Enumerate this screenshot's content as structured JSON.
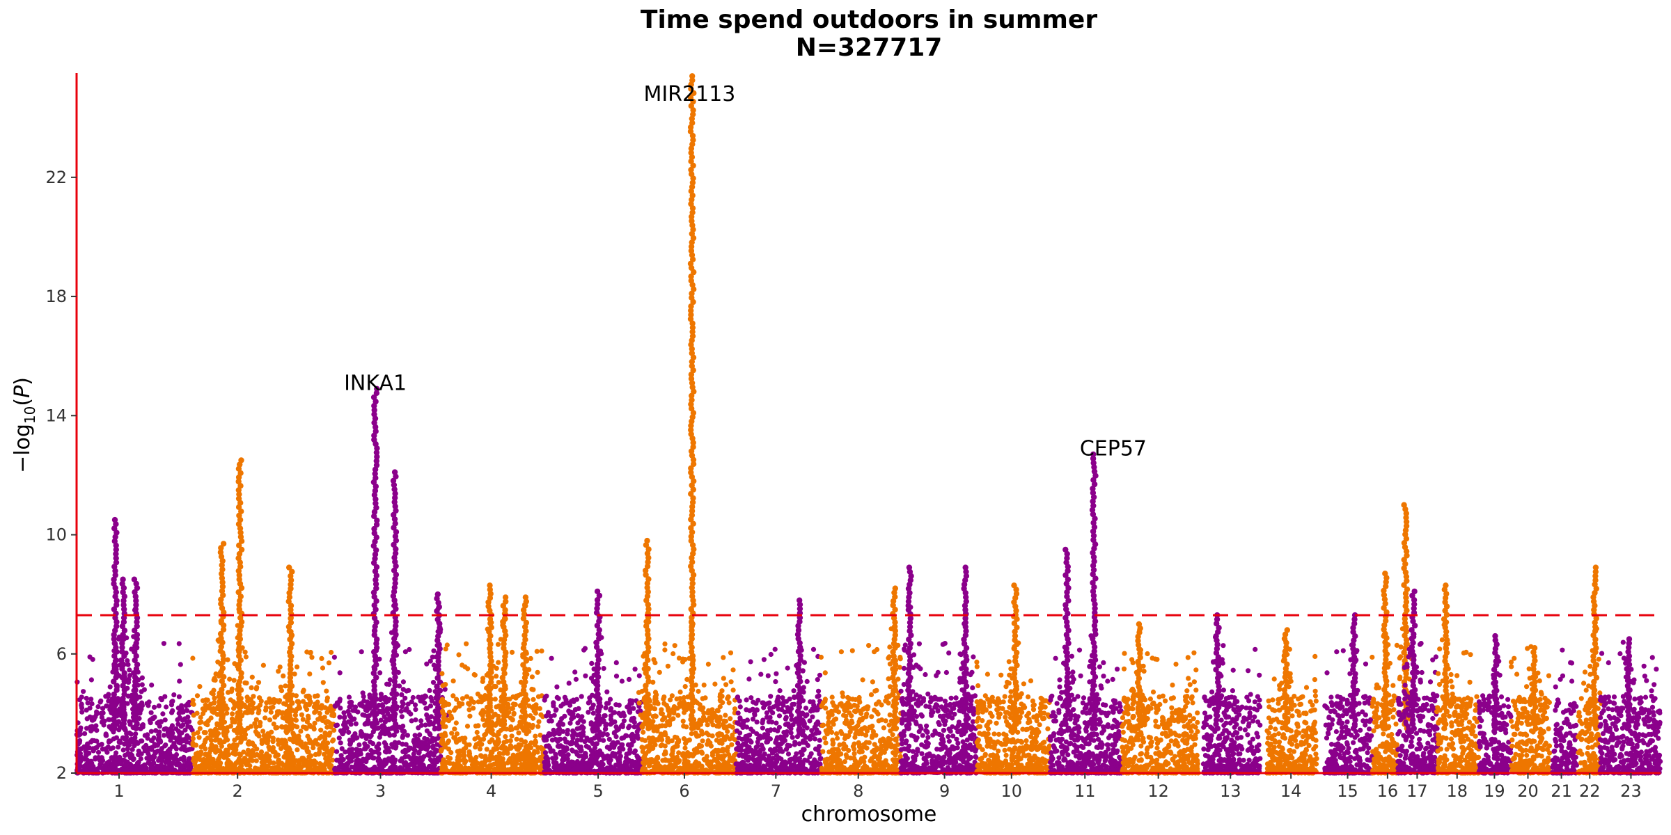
{
  "chart_data": {
    "type": "scatter",
    "title": "Time spend outdoors in summer",
    "subtitle": "N=327717",
    "xlabel": "chromosome",
    "ylabel": "-log10(P)",
    "ylim": [
      2,
      25.5
    ],
    "yticks": [
      2,
      6,
      10,
      14,
      18,
      22
    ],
    "significance_threshold": 7.3,
    "colors": {
      "odd": "#8B008B",
      "even": "#EE7600",
      "axis": "#E8000B",
      "threshold": "#E8000B"
    },
    "chromosomes": [
      {
        "label": "1",
        "start": 0,
        "end": 9.0,
        "center": 3.3,
        "color": "odd",
        "peaks": [
          {
            "x": 3.0,
            "p": 10.5
          },
          {
            "x": 3.6,
            "p": 8.5
          },
          {
            "x": 4.6,
            "p": 8.5
          }
        ]
      },
      {
        "label": "2",
        "start": 9.0,
        "end": 20.0,
        "center": 12.5,
        "color": "even",
        "peaks": [
          {
            "x": 11.3,
            "p": 9.7
          },
          {
            "x": 12.7,
            "p": 12.5
          },
          {
            "x": 16.6,
            "p": 8.9
          }
        ]
      },
      {
        "label": "3",
        "start": 20.0,
        "end": 28.3,
        "center": 23.6,
        "color": "odd",
        "peaks": [
          {
            "x": 23.2,
            "p": 14.9
          },
          {
            "x": 24.7,
            "p": 12.1
          },
          {
            "x": 28.1,
            "p": 8.0
          }
        ]
      },
      {
        "label": "4",
        "start": 28.3,
        "end": 36.3,
        "center": 32.2,
        "color": "even",
        "peaks": [
          {
            "x": 32.1,
            "p": 8.3
          },
          {
            "x": 33.2,
            "p": 7.9
          },
          {
            "x": 34.8,
            "p": 7.9
          }
        ]
      },
      {
        "label": "5",
        "start": 36.3,
        "end": 43.9,
        "center": 40.5,
        "color": "odd",
        "peaks": [
          {
            "x": 40.5,
            "p": 8.1
          }
        ]
      },
      {
        "label": "6",
        "start": 43.9,
        "end": 51.2,
        "center": 47.2,
        "color": "even",
        "peaks": [
          {
            "x": 44.3,
            "p": 9.8
          },
          {
            "x": 47.8,
            "p": 25.4
          }
        ]
      },
      {
        "label": "7",
        "start": 51.2,
        "end": 57.8,
        "center": 54.3,
        "color": "odd",
        "peaks": [
          {
            "x": 56.1,
            "p": 7.8
          }
        ]
      },
      {
        "label": "8",
        "start": 57.8,
        "end": 64.0,
        "center": 60.7,
        "color": "even",
        "peaks": [
          {
            "x": 63.5,
            "p": 8.2
          }
        ]
      },
      {
        "label": "9",
        "start": 64.0,
        "end": 69.9,
        "center": 67.4,
        "color": "odd",
        "peaks": [
          {
            "x": 64.7,
            "p": 8.9
          },
          {
            "x": 69.0,
            "p": 8.9
          }
        ]
      },
      {
        "label": "10",
        "start": 69.9,
        "end": 75.6,
        "center": 72.6,
        "color": "even",
        "peaks": [
          {
            "x": 72.9,
            "p": 8.3
          }
        ]
      },
      {
        "label": "11",
        "start": 75.6,
        "end": 81.2,
        "center": 78.3,
        "color": "odd",
        "peaks": [
          {
            "x": 76.9,
            "p": 9.5
          },
          {
            "x": 79.0,
            "p": 12.7
          }
        ]
      },
      {
        "label": "12",
        "start": 81.2,
        "end": 87.1,
        "center": 84.0,
        "color": "even",
        "peaks": [
          {
            "x": 82.5,
            "p": 7.0
          }
        ]
      },
      {
        "label": "13",
        "start": 87.5,
        "end": 91.9,
        "center": 89.6,
        "color": "odd",
        "peaks": [
          {
            "x": 88.6,
            "p": 7.3
          }
        ]
      },
      {
        "label": "14",
        "start": 92.4,
        "end": 96.3,
        "center": 94.3,
        "color": "even",
        "peaks": [
          {
            "x": 93.9,
            "p": 6.8
          }
        ]
      },
      {
        "label": "15",
        "start": 96.9,
        "end": 100.6,
        "center": 98.7,
        "color": "odd",
        "peaks": [
          {
            "x": 99.2,
            "p": 7.3
          }
        ]
      },
      {
        "label": "16",
        "start": 100.6,
        "end": 102.6,
        "center": 101.8,
        "color": "even",
        "peaks": [
          {
            "x": 101.6,
            "p": 8.7
          },
          {
            "x": 103.2,
            "p": 11.0
          }
        ]
      },
      {
        "label": "17",
        "start": 102.6,
        "end": 105.7,
        "center": 104.1,
        "color": "odd",
        "peaks": [
          {
            "x": 103.8,
            "p": 8.1
          }
        ]
      },
      {
        "label": "18",
        "start": 105.7,
        "end": 108.9,
        "center": 107.2,
        "color": "even",
        "peaks": [
          {
            "x": 106.3,
            "p": 8.3
          }
        ]
      },
      {
        "label": "19",
        "start": 108.9,
        "end": 111.4,
        "center": 110.1,
        "color": "odd",
        "peaks": [
          {
            "x": 110.2,
            "p": 6.6
          }
        ]
      },
      {
        "label": "20",
        "start": 111.4,
        "end": 114.4,
        "center": 112.7,
        "color": "even",
        "peaks": [
          {
            "x": 113.2,
            "p": 6.2
          }
        ]
      },
      {
        "label": "21",
        "start": 114.6,
        "end": 116.5,
        "center": 115.3,
        "color": "odd",
        "peaks": []
      },
      {
        "label": "22",
        "start": 116.6,
        "end": 118.3,
        "center": 117.5,
        "color": "even",
        "peaks": [
          {
            "x": 117.9,
            "p": 8.9
          }
        ]
      },
      {
        "label": "23",
        "start": 118.3,
        "end": 123.0,
        "center": 120.7,
        "color": "odd",
        "peaks": [
          {
            "x": 120.5,
            "p": 6.5
          }
        ]
      }
    ],
    "annotations": [
      {
        "text": "INKA1",
        "x": 23.2,
        "y": 15.05
      },
      {
        "text": "MIR2113",
        "x": 47.6,
        "y": 24.75
      },
      {
        "text": "CEP57",
        "x": 80.5,
        "y": 12.85
      }
    ]
  }
}
